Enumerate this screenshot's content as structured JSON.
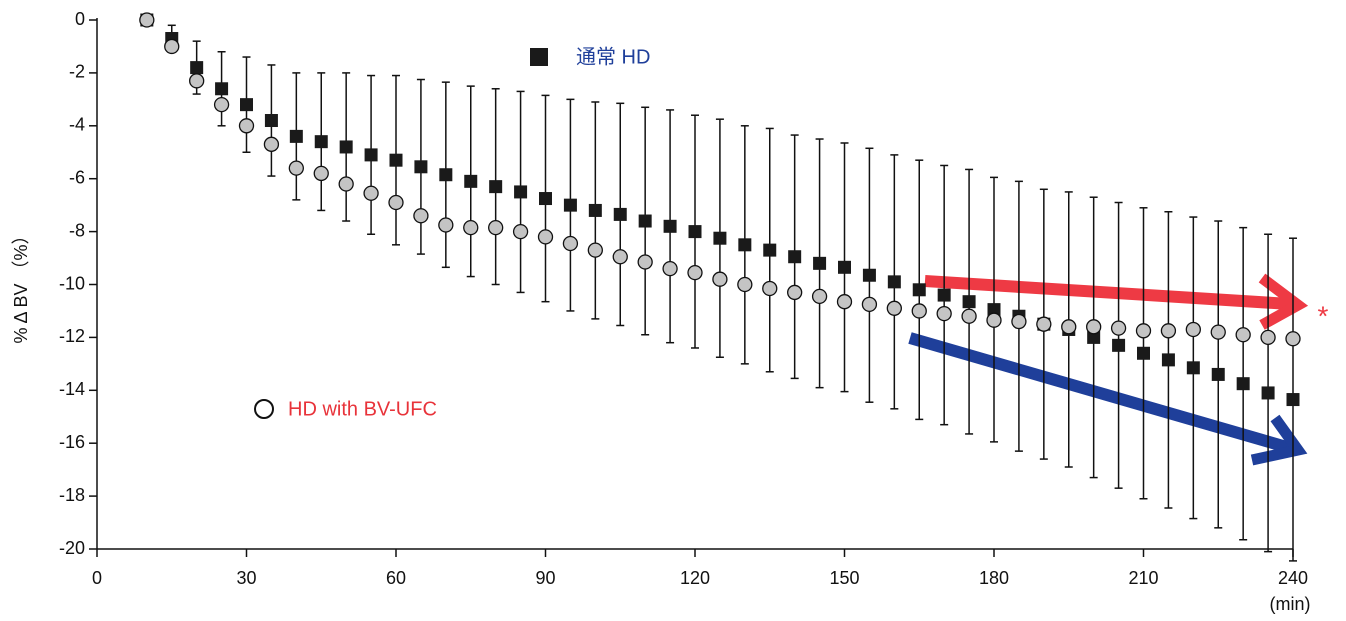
{
  "chart_data": {
    "type": "scatter",
    "x_label": "(min)",
    "y_label": "% Δ BV （%）",
    "annotation": "*",
    "x": [
      10,
      15,
      20,
      25,
      30,
      35,
      40,
      45,
      50,
      55,
      60,
      65,
      70,
      75,
      80,
      85,
      90,
      95,
      100,
      105,
      110,
      115,
      120,
      125,
      130,
      135,
      140,
      145,
      150,
      155,
      160,
      165,
      170,
      175,
      180,
      185,
      190,
      195,
      200,
      205,
      210,
      215,
      220,
      225,
      230,
      235,
      240
    ],
    "series": [
      {
        "name": "通常 HD",
        "color": "#1a1a1a",
        "marker": "square",
        "values": [
          0,
          -0.7,
          -1.8,
          -2.6,
          -3.2,
          -3.8,
          -4.4,
          -4.6,
          -4.8,
          -5.1,
          -5.3,
          -5.55,
          -5.85,
          -6.1,
          -6.3,
          -6.5,
          -6.75,
          -7.0,
          -7.2,
          -7.35,
          -7.6,
          -7.8,
          -8.0,
          -8.25,
          -8.5,
          -8.7,
          -8.95,
          -9.2,
          -9.35,
          -9.65,
          -9.9,
          -10.2,
          -10.4,
          -10.65,
          -10.95,
          -11.2,
          -11.5,
          -11.7,
          -12.0,
          -12.3,
          -12.6,
          -12.85,
          -13.15,
          -13.4,
          -13.75,
          -14.1,
          -14.35
        ],
        "errors": [
          0,
          0.5,
          1.0,
          1.4,
          1.8,
          2.1,
          2.4,
          2.6,
          2.8,
          3.0,
          3.2,
          3.3,
          3.5,
          3.6,
          3.7,
          3.8,
          3.9,
          4.0,
          4.1,
          4.2,
          4.3,
          4.4,
          4.4,
          4.5,
          4.5,
          4.6,
          4.6,
          4.7,
          4.7,
          4.8,
          4.8,
          4.9,
          4.9,
          5.0,
          5.0,
          5.1,
          5.1,
          5.2,
          5.3,
          5.4,
          5.5,
          5.6,
          5.7,
          5.8,
          5.9,
          6.0,
          6.1
        ]
      },
      {
        "name": "HD with BV-UFC",
        "color": "#c4c4c4",
        "marker": "circle",
        "values": [
          0,
          -1.0,
          -2.3,
          -3.2,
          -4.0,
          -4.7,
          -5.6,
          -5.8,
          -6.2,
          -6.55,
          -6.9,
          -7.4,
          -7.75,
          -7.85,
          -7.85,
          -8.0,
          -8.2,
          -8.45,
          -8.7,
          -8.95,
          -9.15,
          -9.4,
          -9.55,
          -9.8,
          -10.0,
          -10.15,
          -10.3,
          -10.45,
          -10.65,
          -10.75,
          -10.9,
          -11.0,
          -11.1,
          -11.2,
          -11.35,
          -11.4,
          -11.5,
          -11.6,
          -11.6,
          -11.65,
          -11.75,
          -11.75,
          -11.7,
          -11.8,
          -11.9,
          -12.0,
          -12.05
        ]
      }
    ],
    "xlim": [
      0,
      240
    ],
    "xticks": [
      0,
      30,
      60,
      90,
      120,
      150,
      180,
      210,
      240
    ],
    "ylim": [
      -20,
      0
    ],
    "yticks": [
      0,
      -2,
      -4,
      -6,
      -8,
      -10,
      -12,
      -14,
      -16,
      -18,
      -20
    ]
  }
}
